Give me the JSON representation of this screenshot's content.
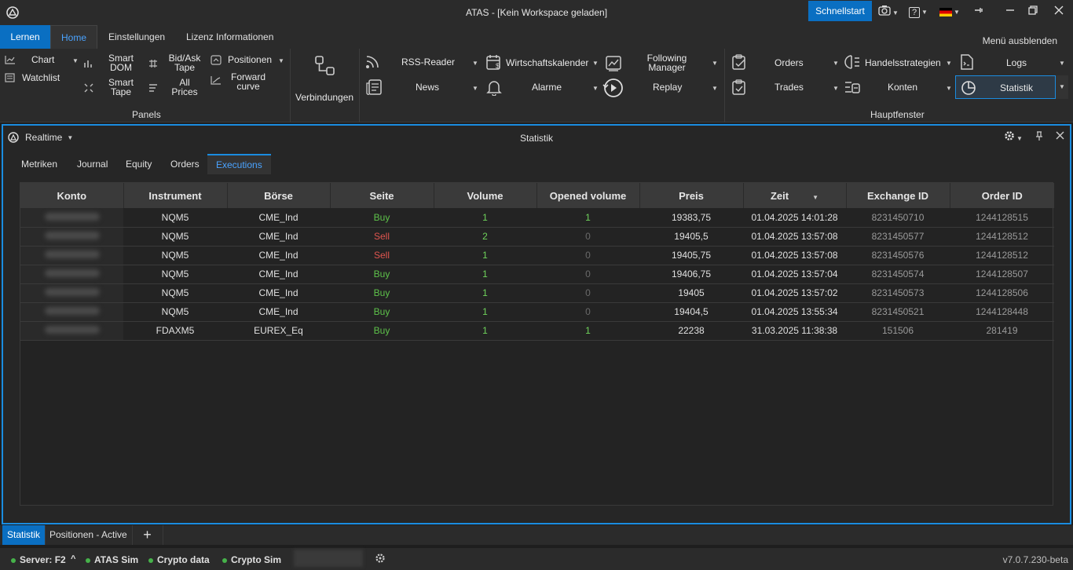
{
  "titlebar": {
    "title": "ATAS - [Kein Workspace geladen]",
    "quickstart": "Schnellstart",
    "camera_icon": "camera-icon",
    "help_icon": "help-icon",
    "help_glyph": "?",
    "flag_icon": "german-flag-icon",
    "minimize_icon": "pin-icon",
    "maximize_icon": "restore-icon",
    "close_icon": "close-icon"
  },
  "ribbon_tabs": {
    "learn": "Lernen",
    "home": "Home",
    "settings": "Einstellungen",
    "license": "Lizenz Informationen",
    "hide_menu": "Menü ausblenden"
  },
  "ribbon": {
    "panels": {
      "title": "Panels",
      "chart": "Chart",
      "watchlist": "Watchlist",
      "smart_dom_1": "Smart",
      "smart_dom_2": "DOM",
      "smart_tape_1": "Smart",
      "smart_tape_2": "Tape",
      "bidask_1": "Bid/Ask",
      "bidask_2": "Tape",
      "allprices_1": "All",
      "allprices_2": "Prices",
      "positionen": "Positionen",
      "forward_1": "Forward",
      "forward_2": "curve"
    },
    "connections": "Verbindungen",
    "hauptfenster": {
      "title": "Hauptfenster",
      "rss": "RSS-Reader",
      "news": "News",
      "calendar": "Wirtschaftskalender",
      "alarms": "Alarme",
      "following_1": "Following",
      "following_2": "Manager",
      "replay": "Replay",
      "orders": "Orders",
      "trades": "Trades",
      "strategies": "Handelsstrategien",
      "accounts": "Konten",
      "logs": "Logs",
      "statistics": "Statistik"
    }
  },
  "panel": {
    "mode": "Realtime",
    "title": "Statistik",
    "tabs": [
      "Metriken",
      "Journal",
      "Equity",
      "Orders",
      "Executions"
    ],
    "active_tab": "Executions"
  },
  "table": {
    "columns": [
      "Konto",
      "Instrument",
      "Börse",
      "Seite",
      "Volume",
      "Opened volume",
      "Preis",
      "Zeit",
      "Exchange ID",
      "Order ID"
    ],
    "rows": [
      {
        "instrument": "NQM5",
        "exchange": "CME_Ind",
        "side": "Buy",
        "volume": "1",
        "opened": "1",
        "price": "19383,75",
        "time": "01.04.2025 14:01:28",
        "exchange_id": "8231450710",
        "order_id": "1244128515"
      },
      {
        "instrument": "NQM5",
        "exchange": "CME_Ind",
        "side": "Sell",
        "volume": "2",
        "opened": "0",
        "price": "19405,5",
        "time": "01.04.2025 13:57:08",
        "exchange_id": "8231450577",
        "order_id": "1244128512"
      },
      {
        "instrument": "NQM5",
        "exchange": "CME_Ind",
        "side": "Sell",
        "volume": "1",
        "opened": "0",
        "price": "19405,75",
        "time": "01.04.2025 13:57:08",
        "exchange_id": "8231450576",
        "order_id": "1244128512"
      },
      {
        "instrument": "NQM5",
        "exchange": "CME_Ind",
        "side": "Buy",
        "volume": "1",
        "opened": "0",
        "price": "19406,75",
        "time": "01.04.2025 13:57:04",
        "exchange_id": "8231450574",
        "order_id": "1244128507"
      },
      {
        "instrument": "NQM5",
        "exchange": "CME_Ind",
        "side": "Buy",
        "volume": "1",
        "opened": "0",
        "price": "19405",
        "time": "01.04.2025 13:57:02",
        "exchange_id": "8231450573",
        "order_id": "1244128506"
      },
      {
        "instrument": "NQM5",
        "exchange": "CME_Ind",
        "side": "Buy",
        "volume": "1",
        "opened": "0",
        "price": "19404,5",
        "time": "01.04.2025 13:55:34",
        "exchange_id": "8231450521",
        "order_id": "1244128448"
      },
      {
        "instrument": "FDAXM5",
        "exchange": "EUREX_Eq",
        "side": "Buy",
        "volume": "1",
        "opened": "1",
        "price": "22238",
        "time": "31.03.2025 11:38:38",
        "exchange_id": "151506",
        "order_id": "281419"
      }
    ]
  },
  "bottom_tabs": [
    "Statistik",
    "Positionen - Active",
    "+"
  ],
  "statusbar": {
    "server": "Server: F2",
    "atas_sim": "ATAS Sim",
    "crypto_data": "Crypto data",
    "crypto_sim": "Crypto Sim",
    "version": "v7.0.7.230-beta"
  },
  "colors": {
    "accent": "#0a6fc2",
    "active_tab_text": "#4aa3ff",
    "buy": "#5ec24a",
    "sell": "#e0554f",
    "status_ok": "#46b24a"
  }
}
